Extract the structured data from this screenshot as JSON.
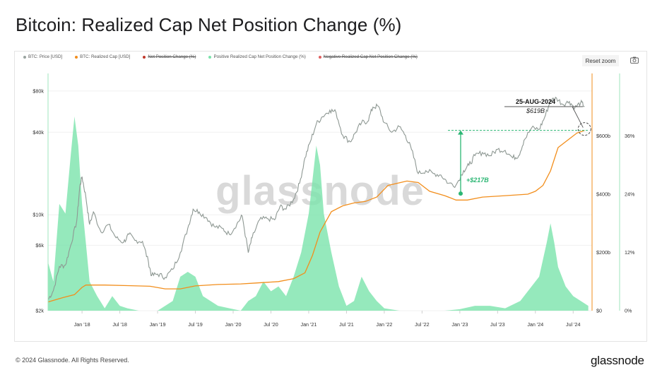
{
  "title": "Bitcoin: Realized Cap Net Position Change (%)",
  "legend": [
    {
      "label": "BTC: Price [USD]",
      "color": "#9aa4a0",
      "strike": false
    },
    {
      "label": "BTC: Realized Cap [USD]",
      "color": "#f28e1c",
      "strike": false
    },
    {
      "label": "Net Position Change (%)",
      "color": "#c0392b",
      "strike": true
    },
    {
      "label": "Positive Realized Cap Net Position Change (%)",
      "color": "#7be3ab",
      "strike": false
    },
    {
      "label": "Negative Realized Cap Net Position Change (%)",
      "color": "#e06060",
      "strike": true
    }
  ],
  "toolbar": {
    "reset_zoom": "Reset zoom",
    "camera_icon": "camera-icon"
  },
  "watermark": "glassnode",
  "annotation": {
    "date": "25-AUG-2024",
    "value": "$619B",
    "delta": "+$217B"
  },
  "footer": {
    "copyright": "© 2024 Glassnode. All Rights Reserved.",
    "logo": "glassnode"
  },
  "colors": {
    "price": "#8e9893",
    "realized": "#f28e1c",
    "positive": "#7be3ab",
    "delta": "#2bb673"
  },
  "chart_data": {
    "type": "line",
    "title": "Bitcoin: Realized Cap Net Position Change (%)",
    "x_tick_labels": [
      "Jan '18",
      "Jul '18",
      "Jan '19",
      "Jul '19",
      "Jan '20",
      "Jul '20",
      "Jan '21",
      "Jul '21",
      "Jan '22",
      "Jul '22",
      "Jan '23",
      "Jul '23",
      "Jan '24",
      "Jul '24"
    ],
    "x_range": [
      2017.55,
      2024.75
    ],
    "y_price_axis": {
      "scale": "log",
      "range": [
        2000,
        100000
      ],
      "tick_labels": [
        "$2k",
        "$6k",
        "$10k",
        "$40k",
        "$80k"
      ],
      "tick_values": [
        2000,
        6000,
        10000,
        40000,
        80000
      ]
    },
    "y_realized_axis": {
      "range": [
        0,
        800
      ],
      "unit": "billion USD",
      "tick_labels": [
        "$0",
        "$200b",
        "$400b",
        "$600b"
      ],
      "tick_values": [
        0,
        200,
        400,
        600
      ]
    },
    "y_change_axis": {
      "range": [
        0,
        48
      ],
      "unit": "%",
      "tick_labels": [
        "0%",
        "12%",
        "24%",
        "36%"
      ],
      "tick_values": [
        0,
        12,
        24,
        36
      ]
    },
    "series": [
      {
        "name": "BTC: Price [USD]",
        "axis": "price",
        "x": [
          2017.55,
          2017.62,
          2017.7,
          2017.78,
          2017.85,
          2017.93,
          2017.97,
          2018.0,
          2018.05,
          2018.1,
          2018.15,
          2018.25,
          2018.35,
          2018.45,
          2018.55,
          2018.62,
          2018.7,
          2018.8,
          2018.88,
          2018.92,
          2019.0,
          2019.1,
          2019.2,
          2019.3,
          2019.4,
          2019.47,
          2019.55,
          2019.65,
          2019.75,
          2019.85,
          2019.95,
          2020.05,
          2020.12,
          2020.2,
          2020.25,
          2020.35,
          2020.45,
          2020.55,
          2020.62,
          2020.7,
          2020.8,
          2020.88,
          2020.95,
          2021.02,
          2021.1,
          2021.18,
          2021.28,
          2021.36,
          2021.45,
          2021.55,
          2021.62,
          2021.7,
          2021.78,
          2021.85,
          2021.92,
          2022.0,
          2022.1,
          2022.2,
          2022.28,
          2022.36,
          2022.45,
          2022.55,
          2022.65,
          2022.75,
          2022.85,
          2022.95,
          2023.05,
          2023.12,
          2023.2,
          2023.3,
          2023.4,
          2023.5,
          2023.6,
          2023.7,
          2023.78,
          2023.85,
          2023.95,
          2024.05,
          2024.12,
          2024.2,
          2024.28,
          2024.36,
          2024.45,
          2024.52,
          2024.6,
          2024.65
        ],
        "values": [
          2400,
          2800,
          4200,
          4300,
          6000,
          9000,
          16000,
          19000,
          13500,
          8500,
          10500,
          7500,
          8500,
          6800,
          6300,
          7200,
          6500,
          6400,
          4500,
          3600,
          3700,
          3500,
          4000,
          5300,
          8000,
          11000,
          10500,
          9500,
          8200,
          8000,
          7200,
          8600,
          9800,
          5300,
          6800,
          9200,
          9400,
          9200,
          11500,
          11000,
          13000,
          17000,
          26000,
          34000,
          46000,
          52000,
          58000,
          56000,
          38000,
          34000,
          40000,
          47000,
          48000,
          61000,
          62000,
          47000,
          40000,
          44000,
          38000,
          30000,
          20000,
          21000,
          20000,
          19500,
          17000,
          16500,
          21000,
          23000,
          27000,
          28500,
          27000,
          30000,
          29500,
          26000,
          27000,
          35000,
          43000,
          42000,
          51000,
          68000,
          71000,
          64000,
          67000,
          60000,
          66000,
          62000
        ]
      },
      {
        "name": "BTC: Realized Cap [USD]",
        "axis": "realized",
        "x": [
          2017.55,
          2017.75,
          2017.9,
          2018.0,
          2018.05,
          2018.3,
          2018.6,
          2018.9,
          2019.1,
          2019.3,
          2019.5,
          2019.8,
          2020.1,
          2020.3,
          2020.6,
          2020.8,
          2020.95,
          2021.05,
          2021.15,
          2021.3,
          2021.45,
          2021.6,
          2021.75,
          2021.9,
          2022.05,
          2022.3,
          2022.45,
          2022.6,
          2022.8,
          2022.95,
          2023.1,
          2023.3,
          2023.6,
          2023.9,
          2024.0,
          2024.1,
          2024.2,
          2024.3,
          2024.45,
          2024.55,
          2024.65
        ],
        "values": [
          30,
          45,
          55,
          80,
          88,
          88,
          86,
          84,
          75,
          75,
          85,
          90,
          92,
          95,
          100,
          110,
          130,
          190,
          270,
          340,
          360,
          370,
          375,
          390,
          430,
          445,
          440,
          410,
          395,
          380,
          380,
          390,
          395,
          400,
          410,
          430,
          480,
          560,
          590,
          610,
          619
        ]
      },
      {
        "name": "Positive Realized Cap Net Position Change (%)",
        "axis": "change",
        "x": [
          2017.55,
          2017.62,
          2017.7,
          2017.78,
          2017.85,
          2017.9,
          2017.95,
          2018.0,
          2018.05,
          2018.1,
          2018.2,
          2018.3,
          2018.4,
          2018.5,
          2018.6,
          2018.75,
          2018.9,
          2019.0,
          2019.2,
          2019.3,
          2019.4,
          2019.5,
          2019.6,
          2019.7,
          2019.8,
          2019.95,
          2020.1,
          2020.2,
          2020.3,
          2020.4,
          2020.5,
          2020.6,
          2020.7,
          2020.8,
          2020.9,
          2021.0,
          2021.1,
          2021.15,
          2021.2,
          2021.3,
          2021.4,
          2021.5,
          2021.6,
          2021.7,
          2021.8,
          2021.9,
          2022.0,
          2022.2,
          2022.4,
          2022.6,
          2022.8,
          2023.0,
          2023.2,
          2023.4,
          2023.6,
          2023.8,
          2023.95,
          2024.05,
          2024.15,
          2024.2,
          2024.25,
          2024.3,
          2024.4,
          2024.5,
          2024.6,
          2024.7
        ],
        "values": [
          10,
          6,
          22,
          20,
          32,
          40,
          34,
          22,
          14,
          6,
          3,
          0.5,
          3,
          1,
          0.5,
          0,
          0,
          0,
          2,
          7,
          8,
          7,
          3,
          2,
          1,
          0.5,
          0,
          2,
          3,
          6,
          4,
          5,
          3,
          7,
          12,
          20,
          34,
          30,
          20,
          12,
          5,
          1,
          2,
          7,
          4,
          2,
          0.5,
          0,
          0,
          0,
          0,
          0.3,
          1,
          1,
          0.5,
          2,
          5,
          7,
          14,
          18,
          14,
          9,
          5,
          3,
          2,
          1
        ]
      }
    ],
    "annotations": [
      {
        "text": "25-AUG-2024",
        "x": 2024.65
      },
      {
        "text": "$619B",
        "x": 2024.65
      },
      {
        "text": "+$217B",
        "from_value": 402,
        "to_value": 619
      }
    ]
  }
}
